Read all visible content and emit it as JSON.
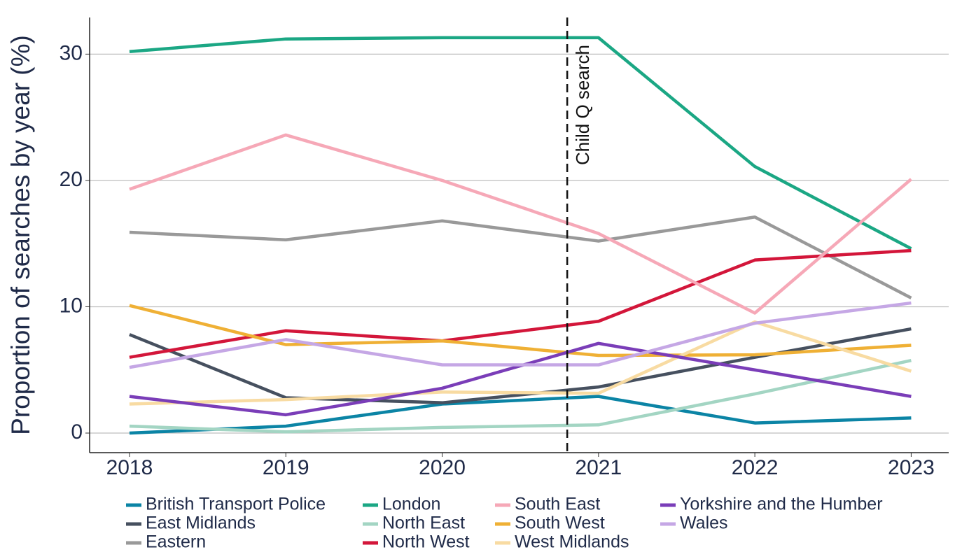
{
  "chart_data": {
    "type": "line",
    "y_label": "Proportion of searches by year (%)",
    "x": [
      2018,
      2019,
      2020,
      2021,
      2022,
      2023
    ],
    "xlim": [
      2017.745,
      2023.24
    ],
    "xticks": [
      2018,
      2019,
      2020,
      2021,
      2022,
      2023
    ],
    "ylim": [
      -1.55,
      32.9
    ],
    "yticks": [
      0,
      10,
      20,
      30
    ],
    "grid": true,
    "legend": "bottom",
    "annotation": {
      "text": "Child Q search",
      "x": 2020.8
    },
    "series": [
      {
        "name": "British Transport Police",
        "color": "#0b84a5",
        "values": [
          0,
          0.55,
          2.3,
          2.9,
          0.8,
          1.2
        ]
      },
      {
        "name": "East Midlands",
        "color": "#46505f",
        "values": [
          7.8,
          2.8,
          2.4,
          3.65,
          6.0,
          8.25
        ]
      },
      {
        "name": "Eastern",
        "color": "#999999",
        "values": [
          15.9,
          15.3,
          16.8,
          15.2,
          17.1,
          10.7
        ]
      },
      {
        "name": "London",
        "color": "#1ba784",
        "values": [
          30.2,
          31.2,
          31.3,
          31.3,
          21.1,
          14.6
        ]
      },
      {
        "name": "North East",
        "color": "#a3d5c3",
        "values": [
          0.55,
          0.1,
          0.45,
          0.65,
          3.1,
          5.75
        ]
      },
      {
        "name": "North West",
        "color": "#d3163a",
        "values": [
          6.0,
          8.1,
          7.3,
          8.85,
          13.7,
          14.45
        ]
      },
      {
        "name": "South East",
        "color": "#f6a8b7",
        "values": [
          19.3,
          23.6,
          20.0,
          15.8,
          9.5,
          20.1
        ]
      },
      {
        "name": "South West",
        "color": "#efb035",
        "values": [
          10.1,
          7.0,
          7.3,
          6.15,
          6.2,
          6.95
        ]
      },
      {
        "name": "West Midlands",
        "color": "#f8dba2",
        "values": [
          2.3,
          2.65,
          3.25,
          3.15,
          8.8,
          4.9
        ]
      },
      {
        "name": "Yorkshire and the Humber",
        "color": "#7a3db8",
        "values": [
          2.9,
          1.45,
          3.55,
          7.1,
          5.0,
          2.9
        ]
      },
      {
        "name": "Wales",
        "color": "#c5a7e5",
        "values": [
          5.2,
          7.4,
          5.4,
          5.4,
          8.7,
          10.3
        ]
      }
    ]
  }
}
